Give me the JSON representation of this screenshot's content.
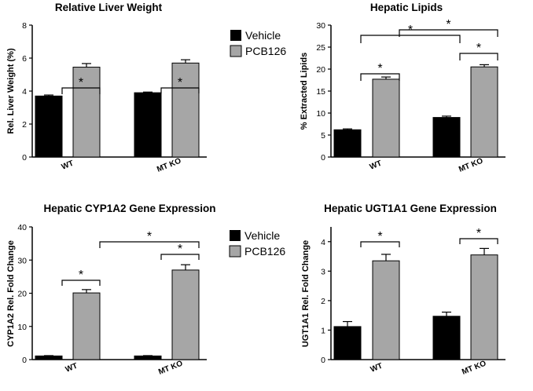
{
  "colors": {
    "vehicle": "#000000",
    "pcb126": "#a6a6a6",
    "axis": "#000000"
  },
  "legend": {
    "vehicle": "Vehicle",
    "pcb126": "PCB126"
  },
  "chart_data": [
    {
      "type": "bar",
      "title": "Relative Liver Weight",
      "ylabel": "Rel. Liver Weight (%)",
      "categories": [
        "WT",
        "MT KO"
      ],
      "series": [
        {
          "name": "Vehicle",
          "values": [
            3.7,
            3.9
          ],
          "errors": [
            0.06,
            0.04
          ]
        },
        {
          "name": "PCB126",
          "values": [
            5.45,
            5.7
          ],
          "errors": [
            0.22,
            0.2
          ]
        }
      ],
      "ylim": [
        0,
        8
      ],
      "yticks": [
        0,
        2,
        4,
        6,
        8
      ],
      "significance": [
        {
          "from": "WT.PCB126",
          "to": "WT.Vehicle",
          "label": "*"
        },
        {
          "from": "MT KO.PCB126",
          "to": "MT KO.Vehicle",
          "label": "*"
        }
      ]
    },
    {
      "type": "bar",
      "title": "Hepatic Lipids",
      "ylabel": "% Extracted Lipids",
      "categories": [
        "WT",
        "MT KO"
      ],
      "series": [
        {
          "name": "Vehicle",
          "values": [
            6.2,
            9.0
          ],
          "errors": [
            0.2,
            0.3
          ]
        },
        {
          "name": "PCB126",
          "values": [
            17.7,
            20.5
          ],
          "errors": [
            0.5,
            0.5
          ]
        }
      ],
      "ylim": [
        0,
        30
      ],
      "yticks": [
        0,
        5,
        10,
        15,
        20,
        25,
        30
      ],
      "significance": [
        {
          "from": "WT.PCB126",
          "to": "WT.Vehicle",
          "label": "*"
        },
        {
          "from": "MT KO.Vehicle",
          "to": "MT KO.PCB126",
          "label": "*"
        },
        {
          "from": "WT.Vehicle",
          "to": "MT KO.Vehicle",
          "label": "*"
        },
        {
          "from": "WT.PCB126",
          "to": "MT KO.PCB126",
          "label": "*"
        }
      ]
    },
    {
      "type": "bar",
      "title": "Hepatic CYP1A2 Gene Expression",
      "ylabel": "CYP1A2 Rel. Fold Change",
      "categories": [
        "WT",
        "MT KO"
      ],
      "series": [
        {
          "name": "Vehicle",
          "values": [
            1.1,
            1.1
          ],
          "errors": [
            0.1,
            0.1
          ]
        },
        {
          "name": "PCB126",
          "values": [
            20.1,
            27.0
          ],
          "errors": [
            1.0,
            1.6
          ]
        }
      ],
      "ylim": [
        0,
        40
      ],
      "yticks": [
        0,
        10,
        20,
        30,
        40
      ],
      "significance": [
        {
          "from": "WT.Vehicle",
          "to": "WT.PCB126",
          "label": "*"
        },
        {
          "from": "MT KO.Vehicle",
          "to": "MT KO.PCB126",
          "label": "*"
        },
        {
          "from": "WT.PCB126",
          "to": "MT KO.PCB126",
          "label": "*"
        }
      ]
    },
    {
      "type": "bar",
      "title": "Hepatic UGT1A1 Gene Expression",
      "ylabel": "UGT1A1 Rel. Fold Change",
      "categories": [
        "WT",
        "MT KO"
      ],
      "series": [
        {
          "name": "Vehicle",
          "values": [
            1.12,
            1.47
          ],
          "errors": [
            0.17,
            0.14
          ]
        },
        {
          "name": "PCB126",
          "values": [
            3.35,
            3.55
          ],
          "errors": [
            0.22,
            0.22
          ]
        }
      ],
      "ylim": [
        0,
        4.5
      ],
      "yticks": [
        0,
        1,
        2,
        3,
        4
      ],
      "significance": [
        {
          "from": "WT.Vehicle",
          "to": "WT.PCB126",
          "label": "*"
        },
        {
          "from": "MT KO.Vehicle",
          "to": "MT KO.PCB126",
          "label": "*"
        }
      ]
    }
  ]
}
